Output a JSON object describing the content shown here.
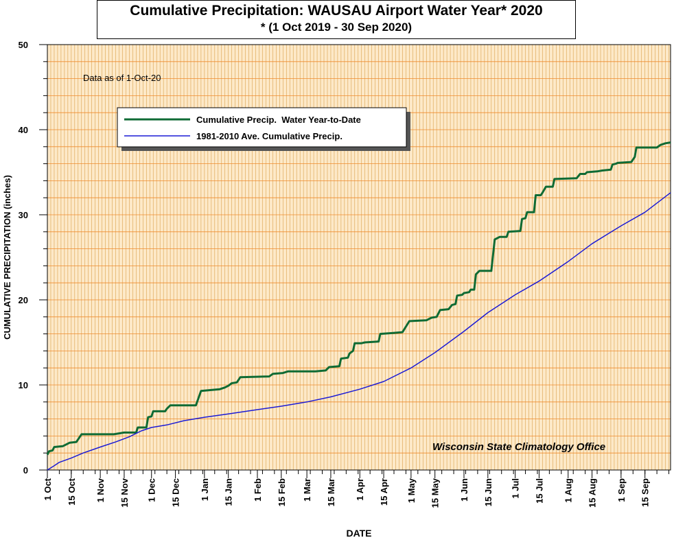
{
  "chart_data": {
    "type": "line",
    "title": "Cumulative Precipitation: WAUSAU Airport Water Year* 2020",
    "subtitle": "* (1 Oct 2019 - 30 Sep 2020)",
    "xlabel": "DATE",
    "ylabel": "CUMULATIVE PRECIPITATION (inches)",
    "ylim": [
      0,
      50
    ],
    "yticks": [
      0,
      10,
      20,
      30,
      40,
      50
    ],
    "xlim": [
      0,
      365
    ],
    "xticks": [
      {
        "label": "1 Oct",
        "day": 0
      },
      {
        "label": "15 Oct",
        "day": 14
      },
      {
        "label": "1 Nov",
        "day": 31
      },
      {
        "label": "15 Nov",
        "day": 45
      },
      {
        "label": "1 Dec",
        "day": 61
      },
      {
        "label": "15 Dec",
        "day": 75
      },
      {
        "label": "1 Jan",
        "day": 92
      },
      {
        "label": "15 Jan",
        "day": 106
      },
      {
        "label": "1 Feb",
        "day": 123
      },
      {
        "label": "15 Feb",
        "day": 137
      },
      {
        "label": "1 Mar",
        "day": 152
      },
      {
        "label": "15 Mar",
        "day": 166
      },
      {
        "label": "1 Apr",
        "day": 183
      },
      {
        "label": "15 Apr",
        "day": 197
      },
      {
        "label": "1 May",
        "day": 213
      },
      {
        "label": "15 May",
        "day": 227
      },
      {
        "label": "1 Jun",
        "day": 244
      },
      {
        "label": "15 Jun",
        "day": 258
      },
      {
        "label": "1 Jul",
        "day": 274
      },
      {
        "label": "15 Jul",
        "day": 288
      },
      {
        "label": "1 Aug",
        "day": 305
      },
      {
        "label": "15 Aug",
        "day": 319
      },
      {
        "label": "1 Sep",
        "day": 336
      },
      {
        "label": "15 Sep",
        "day": 350
      }
    ],
    "grid": true,
    "annotation": "Data as of 1-Oct-20",
    "credit": "Wisconsin State Climatology Office",
    "legend_position": "upper-left",
    "series": [
      {
        "name": "Cumulative Precip.  Water Year-to-Date",
        "color": "#0f6b34",
        "step": true,
        "points": [
          [
            0,
            1.8
          ],
          [
            1,
            2.2
          ],
          [
            3,
            2.3
          ],
          [
            4,
            2.7
          ],
          [
            9,
            2.8
          ],
          [
            13,
            3.2
          ],
          [
            17,
            3.3
          ],
          [
            20,
            4.2
          ],
          [
            39,
            4.2
          ],
          [
            45,
            4.4
          ],
          [
            52,
            4.4
          ],
          [
            53,
            5.0
          ],
          [
            58,
            5.0
          ],
          [
            59,
            6.2
          ],
          [
            61,
            6.3
          ],
          [
            62,
            6.9
          ],
          [
            69,
            6.9
          ],
          [
            70,
            7.2
          ],
          [
            72,
            7.6
          ],
          [
            87,
            7.6
          ],
          [
            90,
            9.3
          ],
          [
            96,
            9.4
          ],
          [
            101,
            9.5
          ],
          [
            104,
            9.7
          ],
          [
            106,
            9.9
          ],
          [
            108,
            10.2
          ],
          [
            111,
            10.3
          ],
          [
            113,
            10.9
          ],
          [
            130,
            11.0
          ],
          [
            132,
            11.3
          ],
          [
            138,
            11.4
          ],
          [
            141,
            11.6
          ],
          [
            157,
            11.6
          ],
          [
            163,
            11.7
          ],
          [
            165,
            12.1
          ],
          [
            171,
            12.2
          ],
          [
            172,
            13.1
          ],
          [
            176,
            13.2
          ],
          [
            177,
            13.7
          ],
          [
            179,
            14.0
          ],
          [
            180,
            14.9
          ],
          [
            184,
            14.9
          ],
          [
            186,
            15.0
          ],
          [
            194,
            15.1
          ],
          [
            195,
            16.0
          ],
          [
            202,
            16.1
          ],
          [
            208,
            16.2
          ],
          [
            212,
            17.5
          ],
          [
            222,
            17.6
          ],
          [
            225,
            17.9
          ],
          [
            228,
            18.0
          ],
          [
            230,
            18.8
          ],
          [
            235,
            18.9
          ],
          [
            237,
            19.4
          ],
          [
            239,
            19.5
          ],
          [
            240,
            20.5
          ],
          [
            243,
            20.6
          ],
          [
            244,
            20.8
          ],
          [
            247,
            20.9
          ],
          [
            248,
            21.2
          ],
          [
            250,
            21.2
          ],
          [
            251,
            23.0
          ],
          [
            253,
            23.4
          ],
          [
            260,
            23.4
          ],
          [
            262,
            27.1
          ],
          [
            265,
            27.4
          ],
          [
            269,
            27.4
          ],
          [
            270,
            28.0
          ],
          [
            277,
            28.1
          ],
          [
            278,
            29.5
          ],
          [
            280,
            29.6
          ],
          [
            281,
            30.3
          ],
          [
            285,
            30.3
          ],
          [
            286,
            32.3
          ],
          [
            289,
            32.3
          ],
          [
            290,
            32.6
          ],
          [
            292,
            33.3
          ],
          [
            296,
            33.3
          ],
          [
            297,
            34.2
          ],
          [
            310,
            34.3
          ],
          [
            312,
            34.8
          ],
          [
            315,
            34.8
          ],
          [
            316,
            35.0
          ],
          [
            322,
            35.1
          ],
          [
            325,
            35.2
          ],
          [
            330,
            35.3
          ],
          [
            331,
            35.9
          ],
          [
            333,
            36.0
          ],
          [
            334,
            36.1
          ],
          [
            342,
            36.2
          ],
          [
            344,
            36.8
          ],
          [
            345,
            37.9
          ],
          [
            357,
            37.9
          ],
          [
            359,
            38.2
          ],
          [
            362,
            38.4
          ],
          [
            365,
            38.5
          ]
        ]
      },
      {
        "name": "1981-2010 Ave. Cumulative Precip.",
        "color": "#1a1ad6",
        "step": false,
        "points": [
          [
            0,
            0.0
          ],
          [
            4,
            0.5
          ],
          [
            7,
            0.9
          ],
          [
            14,
            1.4
          ],
          [
            21,
            2.0
          ],
          [
            31,
            2.7
          ],
          [
            40,
            3.3
          ],
          [
            48,
            3.9
          ],
          [
            55,
            4.6
          ],
          [
            61,
            5.0
          ],
          [
            70,
            5.3
          ],
          [
            80,
            5.8
          ],
          [
            92,
            6.2
          ],
          [
            106,
            6.6
          ],
          [
            123,
            7.1
          ],
          [
            137,
            7.5
          ],
          [
            152,
            8.0
          ],
          [
            166,
            8.6
          ],
          [
            183,
            9.5
          ],
          [
            197,
            10.4
          ],
          [
            213,
            12.0
          ],
          [
            227,
            13.8
          ],
          [
            244,
            16.3
          ],
          [
            258,
            18.5
          ],
          [
            274,
            20.6
          ],
          [
            288,
            22.2
          ],
          [
            305,
            24.5
          ],
          [
            319,
            26.6
          ],
          [
            336,
            28.7
          ],
          [
            350,
            30.3
          ],
          [
            365,
            32.6
          ]
        ]
      }
    ]
  }
}
